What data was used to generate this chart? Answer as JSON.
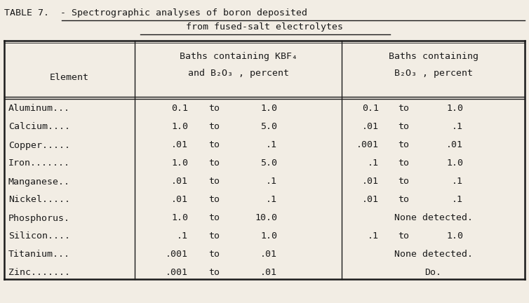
{
  "title_prefix": "TABLE 7.  - ",
  "title_underlined1": "Spectrographic analyses of boron deposited",
  "title_line2": "from fused-salt electrolytes",
  "header_col0": "Element",
  "header_col1_line1": "Baths containing KBF₄",
  "header_col1_line2": "and B₂O₃ , percent",
  "header_col2_line1": "Baths containing",
  "header_col2_line2": "B₂O₃ , percent",
  "rows": [
    [
      "Aluminum...",
      "0.1",
      "to",
      "1.0",
      "0.1",
      "to",
      "1.0"
    ],
    [
      "Calcium....",
      "1.0",
      "to",
      "5.0",
      ".01",
      "to",
      ".1"
    ],
    [
      "Copper.....",
      ".01",
      "to",
      ".1",
      ".001",
      "to",
      ".01"
    ],
    [
      "Iron.......",
      "1.0",
      "to",
      "5.0",
      ".1",
      "to",
      "1.0"
    ],
    [
      "Manganese..",
      ".01",
      "to",
      ".1",
      ".01",
      "to",
      ".1"
    ],
    [
      "Nickel.....",
      ".01",
      "to",
      ".1",
      ".01",
      "to",
      ".1"
    ],
    [
      "Phosphorus.",
      "1.0",
      "to",
      "10.0",
      "None detected.",
      "",
      ""
    ],
    [
      "Silicon....",
      ".1",
      "to",
      "1.0",
      ".1",
      "to",
      "1.0"
    ],
    [
      "Titanium...",
      ".001",
      "to",
      ".01",
      "None detected.",
      "",
      ""
    ],
    [
      "Zinc.......",
      ".001",
      "to",
      ".01",
      "Do.",
      "",
      ""
    ]
  ],
  "bg_color": "#f2ede4",
  "text_color": "#1a1a1a",
  "font_size": 9.5
}
